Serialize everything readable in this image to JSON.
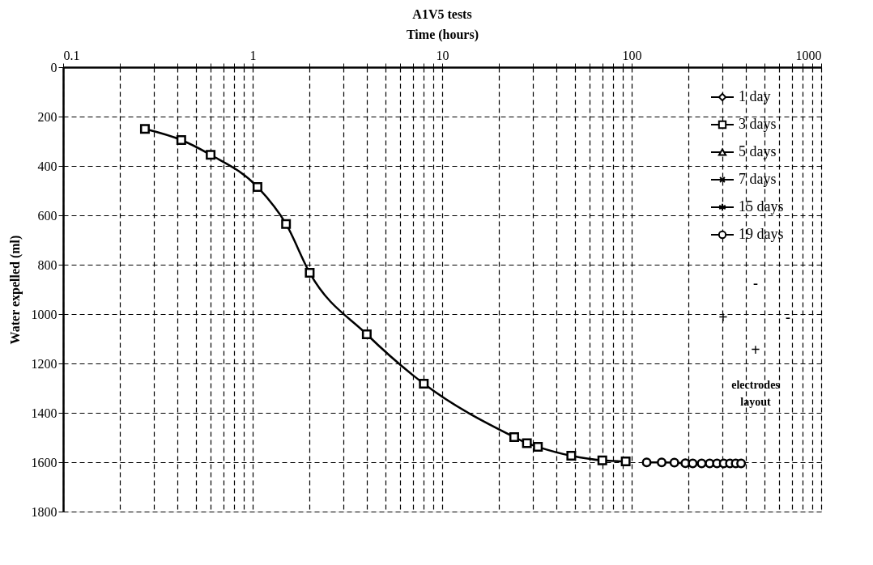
{
  "chart_data": {
    "type": "line",
    "title": "A1V5 tests",
    "xlabel": "Time (hours)",
    "ylabel": "Water expelled (ml)",
    "log": "x",
    "xlim": [
      0.1,
      1000
    ],
    "ylim": [
      1800,
      0
    ],
    "xticks": [
      0.1,
      {
        "value": 0.2,
        "label": null
      },
      {
        "value": 0.3,
        "label": null
      },
      {
        "value": 0.4,
        "label": null
      },
      {
        "value": 0.5,
        "label": null
      },
      {
        "value": 0.6,
        "label": null
      },
      {
        "value": 0.7,
        "label": null
      },
      {
        "value": 0.8,
        "label": null
      },
      {
        "value": 0.9,
        "label": null
      },
      1,
      {
        "value": 2,
        "label": null
      },
      {
        "value": 3,
        "label": null
      },
      {
        "value": 4,
        "label": null
      },
      {
        "value": 5,
        "label": null
      },
      {
        "value": 6,
        "label": null
      },
      {
        "value": 7,
        "label": null
      },
      {
        "value": 8,
        "label": null
      },
      {
        "value": 9,
        "label": null
      },
      10,
      {
        "value": 20,
        "label": null
      },
      {
        "value": 30,
        "label": null
      },
      {
        "value": 40,
        "label": null
      },
      {
        "value": 50,
        "label": null
      },
      {
        "value": 60,
        "label": null
      },
      {
        "value": 70,
        "label": null
      },
      {
        "value": 80,
        "label": null
      },
      {
        "value": 90,
        "label": null
      },
      100,
      {
        "value": 200,
        "label": null
      },
      {
        "value": 300,
        "label": null
      },
      {
        "value": 400,
        "label": null
      },
      {
        "value": 500,
        "label": null
      },
      {
        "value": 600,
        "label": null
      },
      {
        "value": 700,
        "label": null
      },
      {
        "value": 800,
        "label": null
      },
      {
        "value": 900,
        "label": null
      },
      1000
    ],
    "yticks": [
      0,
      200,
      400,
      600,
      800,
      1000,
      1200,
      1400,
      1600,
      1800
    ],
    "grid": true,
    "legend": "top right",
    "line_style": "solid",
    "series": [
      {
        "name": "1 day",
        "color": "#000000",
        "marker": "diamond"
      },
      {
        "name": "3 days",
        "color": "#000000",
        "marker": "square",
        "x": [
          0.27,
          0.42,
          0.6,
          1.06,
          1.5,
          2.0,
          4.0,
          8.0,
          24,
          28,
          32,
          48,
          70,
          93
        ],
        "values": [
          250,
          295,
          355,
          485,
          635,
          833,
          1082,
          1282,
          1498,
          1523,
          1538,
          1574,
          1593,
          1597
        ]
      },
      {
        "name": "5 days",
        "color": "#000000",
        "marker": "triangle"
      },
      {
        "name": "7 days",
        "color": "#000000",
        "marker": "cross"
      },
      {
        "name": "15 days",
        "color": "#000000",
        "marker": "star"
      },
      {
        "name": "19 days",
        "color": "#000000",
        "marker": "circle",
        "x": [
          120,
          144,
          168,
          192,
          210,
          234,
          258,
          282,
          306,
          330,
          354,
          378
        ],
        "values": [
          1601,
          1601,
          1602,
          1604,
          1605,
          1605,
          1605,
          1605,
          1605,
          1605,
          1605,
          1605
        ]
      }
    ],
    "annotations": [
      "-",
      "+",
      "-",
      "+",
      "electrodes",
      "layout"
    ]
  }
}
